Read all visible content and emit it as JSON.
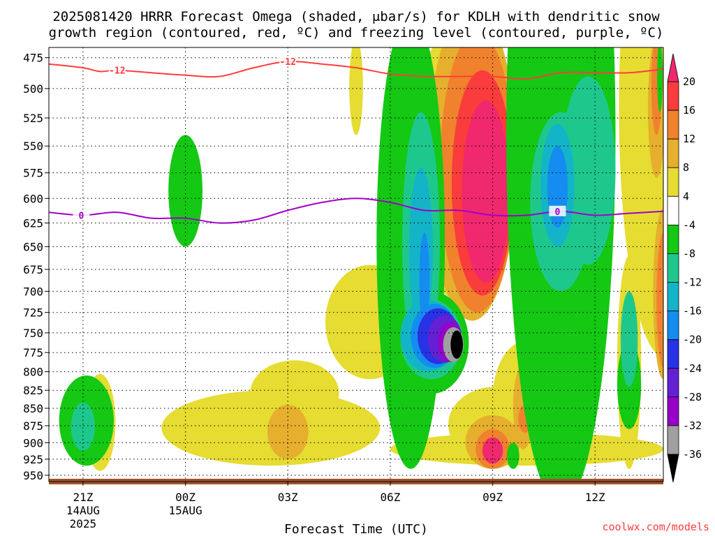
{
  "title_line1": "2025081420 HRRR Forecast Omega (shaded, μbar/s) for KDLH with dendritic snow",
  "title_line2": "growth region (contoured, red, ºC) and freezing level (contoured, purple, ºC)",
  "credit": "coolwx.com/models",
  "colors": {
    "dgz_contour": "#ff3c3c",
    "freezing_contour": "#a000c8",
    "ground": "#a0522d",
    "credit": "#ff3c3c"
  },
  "chart_data": {
    "type": "heatmap",
    "xlabel": "Forecast Time (UTC)",
    "ylabel": "",
    "y_axis_inverted": true,
    "ylim": [
      960,
      467
    ],
    "y_ticks": [
      475,
      500,
      525,
      550,
      575,
      600,
      625,
      650,
      675,
      700,
      725,
      750,
      775,
      800,
      825,
      850,
      875,
      900,
      925,
      950
    ],
    "xlim_hours": [
      -1,
      17
    ],
    "x_ticks": [
      {
        "hour": 0,
        "lines": [
          "21Z",
          "14AUG",
          "2025"
        ]
      },
      {
        "hour": 3,
        "lines": [
          "00Z",
          "15AUG"
        ]
      },
      {
        "hour": 6,
        "lines": [
          "03Z"
        ]
      },
      {
        "hour": 9,
        "lines": [
          "06Z"
        ]
      },
      {
        "hour": 12,
        "lines": [
          "09Z"
        ]
      },
      {
        "hour": 15,
        "lines": [
          "12Z"
        ]
      }
    ],
    "grid": true,
    "colorbar": {
      "placement": "right",
      "tick_labels": [
        -36,
        -32,
        -28,
        -24,
        -20,
        -16,
        -12,
        -8,
        -4,
        4,
        8,
        12,
        16,
        20
      ],
      "levels": [
        {
          "from": -40,
          "to": -36,
          "color": "#000000"
        },
        {
          "from": -36,
          "to": -32,
          "color": "#a0a0a0"
        },
        {
          "from": -32,
          "to": -28,
          "color": "#9600c8"
        },
        {
          "from": -28,
          "to": -24,
          "color": "#6420d2"
        },
        {
          "from": -24,
          "to": -20,
          "color": "#2832e6"
        },
        {
          "from": -20,
          "to": -16,
          "color": "#148cf0"
        },
        {
          "from": -16,
          "to": -12,
          "color": "#14b4c8"
        },
        {
          "from": -12,
          "to": -8,
          "color": "#1ec88c"
        },
        {
          "from": -8,
          "to": -4,
          "color": "#14c814"
        },
        {
          "from": -4,
          "to": 4,
          "color": "#ffffff"
        },
        {
          "from": 4,
          "to": 8,
          "color": "#e6dc32"
        },
        {
          "from": 8,
          "to": 12,
          "color": "#e6af2d"
        },
        {
          "from": 12,
          "to": 16,
          "color": "#f0822d"
        },
        {
          "from": 16,
          "to": 20,
          "color": "#fa3c3c"
        },
        {
          "from": 20,
          "to": 24,
          "color": "#f0286e"
        }
      ]
    },
    "omega_features": [
      {
        "value": 6,
        "hour": 0.5,
        "p": 873,
        "dh": 0.45,
        "dp": 70
      },
      {
        "value": -6,
        "hour": 0.1,
        "p": 870,
        "dh": 0.8,
        "dp": 65
      },
      {
        "value": -10,
        "hour": 0.0,
        "p": 877,
        "dh": 0.35,
        "dp": 35
      },
      {
        "value": -6,
        "hour": 3.0,
        "p": 595,
        "dh": 0.5,
        "dp": 55
      },
      {
        "value": 5,
        "hour": 8.0,
        "p": 500,
        "dh": 0.2,
        "dp": 40
      },
      {
        "value": 5,
        "hour": 8.4,
        "p": 740,
        "dh": 1.3,
        "dp": 70
      },
      {
        "value": 5,
        "hour": 5.5,
        "p": 880,
        "dh": 3.2,
        "dp": 55
      },
      {
        "value": 5,
        "hour": 6.2,
        "p": 830,
        "dh": 1.3,
        "dp": 45
      },
      {
        "value": 9,
        "hour": 6.0,
        "p": 885,
        "dh": 0.6,
        "dp": 40
      },
      {
        "value": 5,
        "hour": 13.0,
        "p": 840,
        "dh": 1.0,
        "dp": 80
      },
      {
        "value": 5,
        "hour": 13.0,
        "p": 910,
        "dh": 4.0,
        "dp": 25
      },
      {
        "value": 9,
        "hour": 13.0,
        "p": 870,
        "dh": 0.3,
        "dp": 30
      },
      {
        "value": 7,
        "hour": 12.1,
        "p": 875,
        "dh": 1.4,
        "dp": 55
      },
      {
        "value": 11,
        "hour": 12.0,
        "p": 900,
        "dh": 0.8,
        "dp": 40
      },
      {
        "value": 15,
        "hour": 12.0,
        "p": 910,
        "dh": 0.5,
        "dp": 30
      },
      {
        "value": 20,
        "hour": 12.0,
        "p": 912,
        "dh": 0.3,
        "dp": 20
      },
      {
        "value": 5,
        "hour": 11.0,
        "p": 580,
        "dh": 1.4,
        "dp": 130
      },
      {
        "value": 9,
        "hour": 11.4,
        "p": 585,
        "dh": 1.3,
        "dp": 150
      },
      {
        "value": 13,
        "hour": 11.55,
        "p": 590,
        "dh": 1.1,
        "dp": 135
      },
      {
        "value": 17,
        "hour": 11.7,
        "p": 595,
        "dh": 0.9,
        "dp": 110
      },
      {
        "value": 22,
        "hour": 11.8,
        "p": 600,
        "dh": 0.7,
        "dp": 90
      },
      {
        "value": 5,
        "hour": 17.0,
        "p": 560,
        "dh": 1.3,
        "dp": 220
      },
      {
        "value": 9,
        "hour": 16.8,
        "p": 520,
        "dh": 0.25,
        "dp": 60
      },
      {
        "value": 13,
        "hour": 16.8,
        "p": 500,
        "dh": 0.15,
        "dp": 40
      },
      {
        "value": 5,
        "hour": 16.0,
        "p": 800,
        "dh": 0.35,
        "dp": 140
      },
      {
        "value": 9,
        "hour": 12.9,
        "p": 850,
        "dh": 0.3,
        "dp": 60
      },
      {
        "value": 13,
        "hour": 12.95,
        "p": 865,
        "dh": 0.2,
        "dp": 20
      },
      {
        "value": -6,
        "hour": 9.6,
        "p": 690,
        "dh": 1.0,
        "dp": 250
      },
      {
        "value": -6,
        "hour": 10.2,
        "p": 765,
        "dh": 1.1,
        "dp": 65
      },
      {
        "value": -10,
        "hour": 9.9,
        "p": 660,
        "dh": 0.55,
        "dp": 140
      },
      {
        "value": -10,
        "hour": 10.2,
        "p": 760,
        "dh": 0.9,
        "dp": 50
      },
      {
        "value": -14,
        "hour": 9.9,
        "p": 660,
        "dh": 0.35,
        "dp": 90
      },
      {
        "value": -14,
        "hour": 10.1,
        "p": 755,
        "dh": 0.8,
        "dp": 45
      },
      {
        "value": -18,
        "hour": 10.0,
        "p": 690,
        "dh": 0.15,
        "dp": 55
      },
      {
        "value": -18,
        "hour": 10.3,
        "p": 755,
        "dh": 0.7,
        "dp": 40
      },
      {
        "value": -22,
        "hour": 10.4,
        "p": 755,
        "dh": 0.6,
        "dp": 35
      },
      {
        "value": -26,
        "hour": 10.6,
        "p": 758,
        "dh": 0.5,
        "dp": 30
      },
      {
        "value": -30,
        "hour": 10.75,
        "p": 762,
        "dh": 0.35,
        "dp": 25
      },
      {
        "value": -34,
        "hour": 10.85,
        "p": 765,
        "dh": 0.3,
        "dp": 22
      },
      {
        "value": -38,
        "hour": 10.95,
        "p": 765,
        "dh": 0.18,
        "dp": 18
      },
      {
        "value": -6,
        "hour": 14.0,
        "p": 650,
        "dh": 1.6,
        "dp": 360
      },
      {
        "value": -10,
        "hour": 14.0,
        "p": 610,
        "dh": 0.9,
        "dp": 90
      },
      {
        "value": -10,
        "hour": 14.2,
        "p": 560,
        "dh": 0.6,
        "dp": 40
      },
      {
        "value": -10,
        "hour": 14.8,
        "p": 580,
        "dh": 0.8,
        "dp": 90
      },
      {
        "value": -14,
        "hour": 13.9,
        "p": 590,
        "dh": 0.5,
        "dp": 60
      },
      {
        "value": -18,
        "hour": 13.9,
        "p": 590,
        "dh": 0.3,
        "dp": 40
      },
      {
        "value": -6,
        "hour": 16.0,
        "p": 820,
        "dh": 0.35,
        "dp": 60
      },
      {
        "value": -10,
        "hour": 16.0,
        "p": 760,
        "dh": 0.25,
        "dp": 60
      },
      {
        "value": -6,
        "hour": 12.6,
        "p": 920,
        "dh": 0.18,
        "dp": 20
      },
      {
        "value": -6,
        "hour": 16.9,
        "p": 490,
        "dh": 0.08,
        "dp": 30
      },
      {
        "value": 10,
        "hour": 17.0,
        "p": 710,
        "dh": 0.3,
        "dp": 100
      },
      {
        "value": 14,
        "hour": 17.0,
        "p": 715,
        "dh": 0.2,
        "dp": 80
      }
    ],
    "dgz_contour": {
      "level": -12,
      "label": "-12",
      "label_hours": [
        1.0,
        6.0
      ],
      "points": [
        [
          -1,
          480
        ],
        [
          0,
          483
        ],
        [
          0.5,
          486
        ],
        [
          1,
          485
        ],
        [
          2,
          487
        ],
        [
          3,
          489
        ],
        [
          4,
          490
        ],
        [
          5,
          483
        ],
        [
          6,
          478
        ],
        [
          7,
          480
        ],
        [
          8,
          483
        ],
        [
          9,
          488
        ],
        [
          10,
          490
        ],
        [
          11,
          490
        ],
        [
          12,
          490
        ],
        [
          13,
          492
        ],
        [
          14,
          487
        ],
        [
          15,
          487
        ],
        [
          16,
          487
        ],
        [
          17,
          484
        ]
      ]
    },
    "freezing_contour": {
      "level": 0,
      "label": "0",
      "label_hours": [
        -0.05,
        13.9
      ],
      "points": [
        [
          -1,
          614
        ],
        [
          0,
          617
        ],
        [
          1,
          614
        ],
        [
          2,
          620
        ],
        [
          3,
          620
        ],
        [
          4,
          625
        ],
        [
          5,
          622
        ],
        [
          6,
          612
        ],
        [
          7,
          604
        ],
        [
          8,
          600
        ],
        [
          9,
          604
        ],
        [
          10,
          612
        ],
        [
          11,
          612
        ],
        [
          12,
          617
        ],
        [
          13,
          617
        ],
        [
          14,
          613
        ],
        [
          15,
          617
        ],
        [
          16,
          615
        ],
        [
          17,
          613
        ]
      ]
    }
  }
}
